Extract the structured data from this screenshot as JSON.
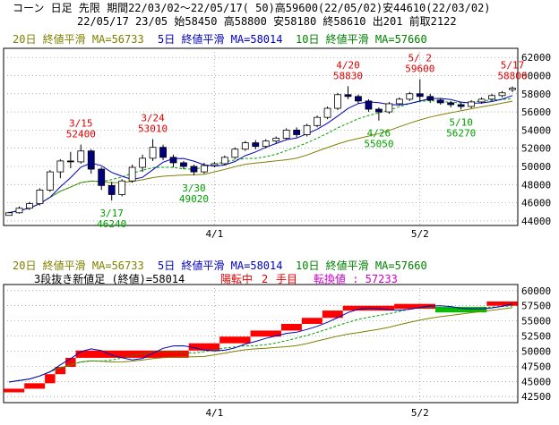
{
  "header": {
    "line1": "コーン 日足 先限 期間22/03/02～22/05/17( 50)高59600(22/05/02)安44610(22/03/02)",
    "line2": "22/05/17 23/05 始58450 高58800 安58180 終58610 出201 前取2122"
  },
  "legend": {
    "ma20": "20日 終値平滑 MA=56733",
    "ma5": "5日 終値平滑 MA=58014",
    "ma10": "10日 終値平滑 MA=57660"
  },
  "bottom_info": {
    "label": "3段抜き新値足 (終値)=58014",
    "status": "陽転中",
    "count": "2",
    "count_unit": "手目",
    "switch": "転換値 : 57233"
  },
  "colors": {
    "up": "#ffffff",
    "down": "#000080",
    "ma5": "#0000c0",
    "ma10": "#00a000",
    "ma20": "#808000",
    "red": "#ff0000",
    "green": "#00c000",
    "grid": "#808080"
  },
  "chart_data": [
    {
      "type": "candlestick",
      "yticks": [
        44000,
        46000,
        48000,
        50000,
        52000,
        54000,
        56000,
        58000,
        60000,
        62000
      ],
      "ylim": [
        43500,
        63000
      ],
      "xticks": [
        {
          "label": "4/1",
          "index": 20
        },
        {
          "label": "5/2",
          "index": 40
        }
      ],
      "candles": [
        {
          "o": 44610,
          "h": 45000,
          "l": 44610,
          "c": 44900
        },
        {
          "o": 44900,
          "h": 45600,
          "l": 44800,
          "c": 45400
        },
        {
          "o": 45400,
          "h": 46100,
          "l": 45200,
          "c": 45900
        },
        {
          "o": 45900,
          "h": 47600,
          "l": 45700,
          "c": 47400
        },
        {
          "o": 47400,
          "h": 49600,
          "l": 47200,
          "c": 49400
        },
        {
          "o": 49400,
          "h": 50800,
          "l": 48700,
          "c": 50600
        },
        {
          "o": 50600,
          "h": 51600,
          "l": 49800,
          "c": 50500
        },
        {
          "o": 50500,
          "h": 52400,
          "l": 50300,
          "c": 51700
        },
        {
          "o": 51700,
          "h": 51900,
          "l": 49200,
          "c": 49700
        },
        {
          "o": 49700,
          "h": 49900,
          "l": 47400,
          "c": 47900
        },
        {
          "o": 47900,
          "h": 48300,
          "l": 46240,
          "c": 46900
        },
        {
          "o": 46900,
          "h": 48600,
          "l": 46700,
          "c": 48400
        },
        {
          "o": 48400,
          "h": 50200,
          "l": 48200,
          "c": 49900
        },
        {
          "o": 49900,
          "h": 51300,
          "l": 49400,
          "c": 50900
        },
        {
          "o": 50900,
          "h": 53010,
          "l": 50600,
          "c": 52100
        },
        {
          "o": 52100,
          "h": 52400,
          "l": 50700,
          "c": 51000
        },
        {
          "o": 51000,
          "h": 51300,
          "l": 49900,
          "c": 50400
        },
        {
          "o": 50400,
          "h": 50600,
          "l": 49700,
          "c": 50000
        },
        {
          "o": 50000,
          "h": 50200,
          "l": 49020,
          "c": 49400
        },
        {
          "o": 49400,
          "h": 50400,
          "l": 49200,
          "c": 50100
        },
        {
          "o": 50100,
          "h": 50500,
          "l": 49900,
          "c": 50300
        },
        {
          "o": 50300,
          "h": 51200,
          "l": 50100,
          "c": 51000
        },
        {
          "o": 51000,
          "h": 52100,
          "l": 50800,
          "c": 51900
        },
        {
          "o": 51900,
          "h": 52800,
          "l": 51700,
          "c": 52600
        },
        {
          "o": 52600,
          "h": 52900,
          "l": 51900,
          "c": 52200
        },
        {
          "o": 52200,
          "h": 53000,
          "l": 52000,
          "c": 52800
        },
        {
          "o": 52800,
          "h": 53300,
          "l": 52500,
          "c": 53100
        },
        {
          "o": 53100,
          "h": 54200,
          "l": 52900,
          "c": 54000
        },
        {
          "o": 54000,
          "h": 54300,
          "l": 53200,
          "c": 53500
        },
        {
          "o": 53500,
          "h": 54700,
          "l": 53300,
          "c": 54500
        },
        {
          "o": 54500,
          "h": 55600,
          "l": 54300,
          "c": 55400
        },
        {
          "o": 55400,
          "h": 56600,
          "l": 55200,
          "c": 56400
        },
        {
          "o": 56400,
          "h": 58100,
          "l": 56200,
          "c": 57900
        },
        {
          "o": 57900,
          "h": 58830,
          "l": 57400,
          "c": 57700
        },
        {
          "o": 57700,
          "h": 57900,
          "l": 56900,
          "c": 57200
        },
        {
          "o": 57200,
          "h": 57400,
          "l": 56000,
          "c": 56300
        },
        {
          "o": 56300,
          "h": 56500,
          "l": 55050,
          "c": 56000
        },
        {
          "o": 56000,
          "h": 57100,
          "l": 55800,
          "c": 56900
        },
        {
          "o": 56900,
          "h": 57600,
          "l": 56700,
          "c": 57400
        },
        {
          "o": 57400,
          "h": 58200,
          "l": 57200,
          "c": 58000
        },
        {
          "o": 58000,
          "h": 59600,
          "l": 57200,
          "c": 57700
        },
        {
          "o": 57700,
          "h": 58000,
          "l": 57000,
          "c": 57300
        },
        {
          "o": 57300,
          "h": 57500,
          "l": 56800,
          "c": 57000
        },
        {
          "o": 57000,
          "h": 57200,
          "l": 56500,
          "c": 56800
        },
        {
          "o": 56800,
          "h": 57000,
          "l": 56270,
          "c": 56600
        },
        {
          "o": 56600,
          "h": 57300,
          "l": 56400,
          "c": 57100
        },
        {
          "o": 57100,
          "h": 57600,
          "l": 56900,
          "c": 57400
        },
        {
          "o": 57400,
          "h": 58000,
          "l": 57200,
          "c": 57800
        },
        {
          "o": 57800,
          "h": 58300,
          "l": 57600,
          "c": 58100
        },
        {
          "o": 58450,
          "h": 58800,
          "l": 58180,
          "c": 58610
        }
      ],
      "annotations": [
        {
          "date": "3/15",
          "value": "52400",
          "index": 7,
          "type": "high"
        },
        {
          "date": "3/17",
          "value": "46240",
          "index": 10,
          "type": "low"
        },
        {
          "date": "3/24",
          "value": "53010",
          "index": 14,
          "type": "high"
        },
        {
          "date": "3/30",
          "value": "49020",
          "index": 18,
          "type": "low"
        },
        {
          "date": "4/20",
          "value": "58830",
          "index": 33,
          "type": "high"
        },
        {
          "date": "4/26",
          "value": "55050",
          "index": 36,
          "type": "low"
        },
        {
          "date": "5/ 2",
          "value": "59600",
          "index": 40,
          "type": "high"
        },
        {
          "date": "5/10",
          "value": "56270",
          "index": 44,
          "type": "low"
        },
        {
          "date": "5/17",
          "value": "58800",
          "index": 49,
          "type": "high"
        }
      ],
      "ma_values": {
        "ma5": 58014,
        "ma10": 57660,
        "ma20": 56733
      }
    },
    {
      "type": "new-price-bars",
      "yticks": [
        42500,
        45000,
        47500,
        50000,
        52500,
        55000,
        57500,
        60000
      ],
      "ylim": [
        41500,
        61000
      ],
      "xticks": [
        {
          "label": "4/1",
          "index": 20
        },
        {
          "label": "5/2",
          "index": 40
        }
      ],
      "turn_value": 57233,
      "segments": [
        {
          "from": 0,
          "to": 2,
          "lo": 43200,
          "hi": 43800,
          "color": "red"
        },
        {
          "from": 2,
          "to": 4,
          "lo": 43800,
          "hi": 44700,
          "color": "red"
        },
        {
          "from": 4,
          "to": 5,
          "lo": 44700,
          "hi": 46200,
          "color": "red"
        },
        {
          "from": 5,
          "to": 6,
          "lo": 46200,
          "hi": 47400,
          "color": "red"
        },
        {
          "from": 6,
          "to": 7,
          "lo": 47400,
          "hi": 48900,
          "color": "red"
        },
        {
          "from": 7,
          "to": 18,
          "lo": 48900,
          "hi": 50100,
          "color": "red"
        },
        {
          "from": 18,
          "to": 21,
          "lo": 50100,
          "hi": 51300,
          "color": "red"
        },
        {
          "from": 21,
          "to": 24,
          "lo": 51300,
          "hi": 52400,
          "color": "red"
        },
        {
          "from": 24,
          "to": 27,
          "lo": 52400,
          "hi": 53400,
          "color": "red"
        },
        {
          "from": 27,
          "to": 29,
          "lo": 53400,
          "hi": 54500,
          "color": "red"
        },
        {
          "from": 29,
          "to": 31,
          "lo": 54500,
          "hi": 55500,
          "color": "red"
        },
        {
          "from": 31,
          "to": 33,
          "lo": 55500,
          "hi": 56700,
          "color": "red"
        },
        {
          "from": 33,
          "to": 38,
          "lo": 56700,
          "hi": 57500,
          "color": "red"
        },
        {
          "from": 38,
          "to": 42,
          "lo": 57000,
          "hi": 57800,
          "color": "red"
        },
        {
          "from": 42,
          "to": 47,
          "lo": 56400,
          "hi": 57300,
          "color": "green"
        },
        {
          "from": 47,
          "to": 50,
          "lo": 57500,
          "hi": 58200,
          "color": "red"
        }
      ]
    }
  ]
}
